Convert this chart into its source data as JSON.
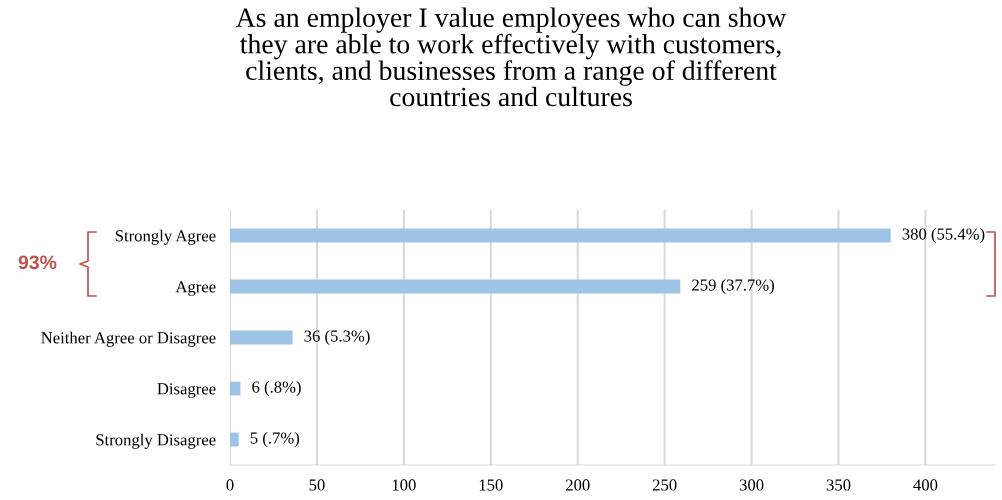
{
  "chart_data": {
    "type": "bar",
    "orientation": "horizontal",
    "title": "As an employer I value employees who can show\nthey are able to work effectively with customers,\nclients, and businesses from a range of different\ncountries and cultures",
    "categories": [
      "Strongly Agree",
      "Agree",
      "Neither Agree or Disagree",
      "Disagree",
      "Strongly Disagree"
    ],
    "values": [
      380,
      259,
      36,
      6,
      5
    ],
    "value_labels": [
      "380 (55.4%)",
      "259 (37.7%)",
      "36 (5.3%)",
      "6 (.8%)",
      "5 (.7%)"
    ],
    "color": "#9dc3e6",
    "xlim": [
      0,
      440
    ],
    "xticks": [
      0,
      50,
      100,
      150,
      200,
      250,
      300,
      350,
      400
    ],
    "grid": "x",
    "annotations": [
      "93%"
    ]
  }
}
